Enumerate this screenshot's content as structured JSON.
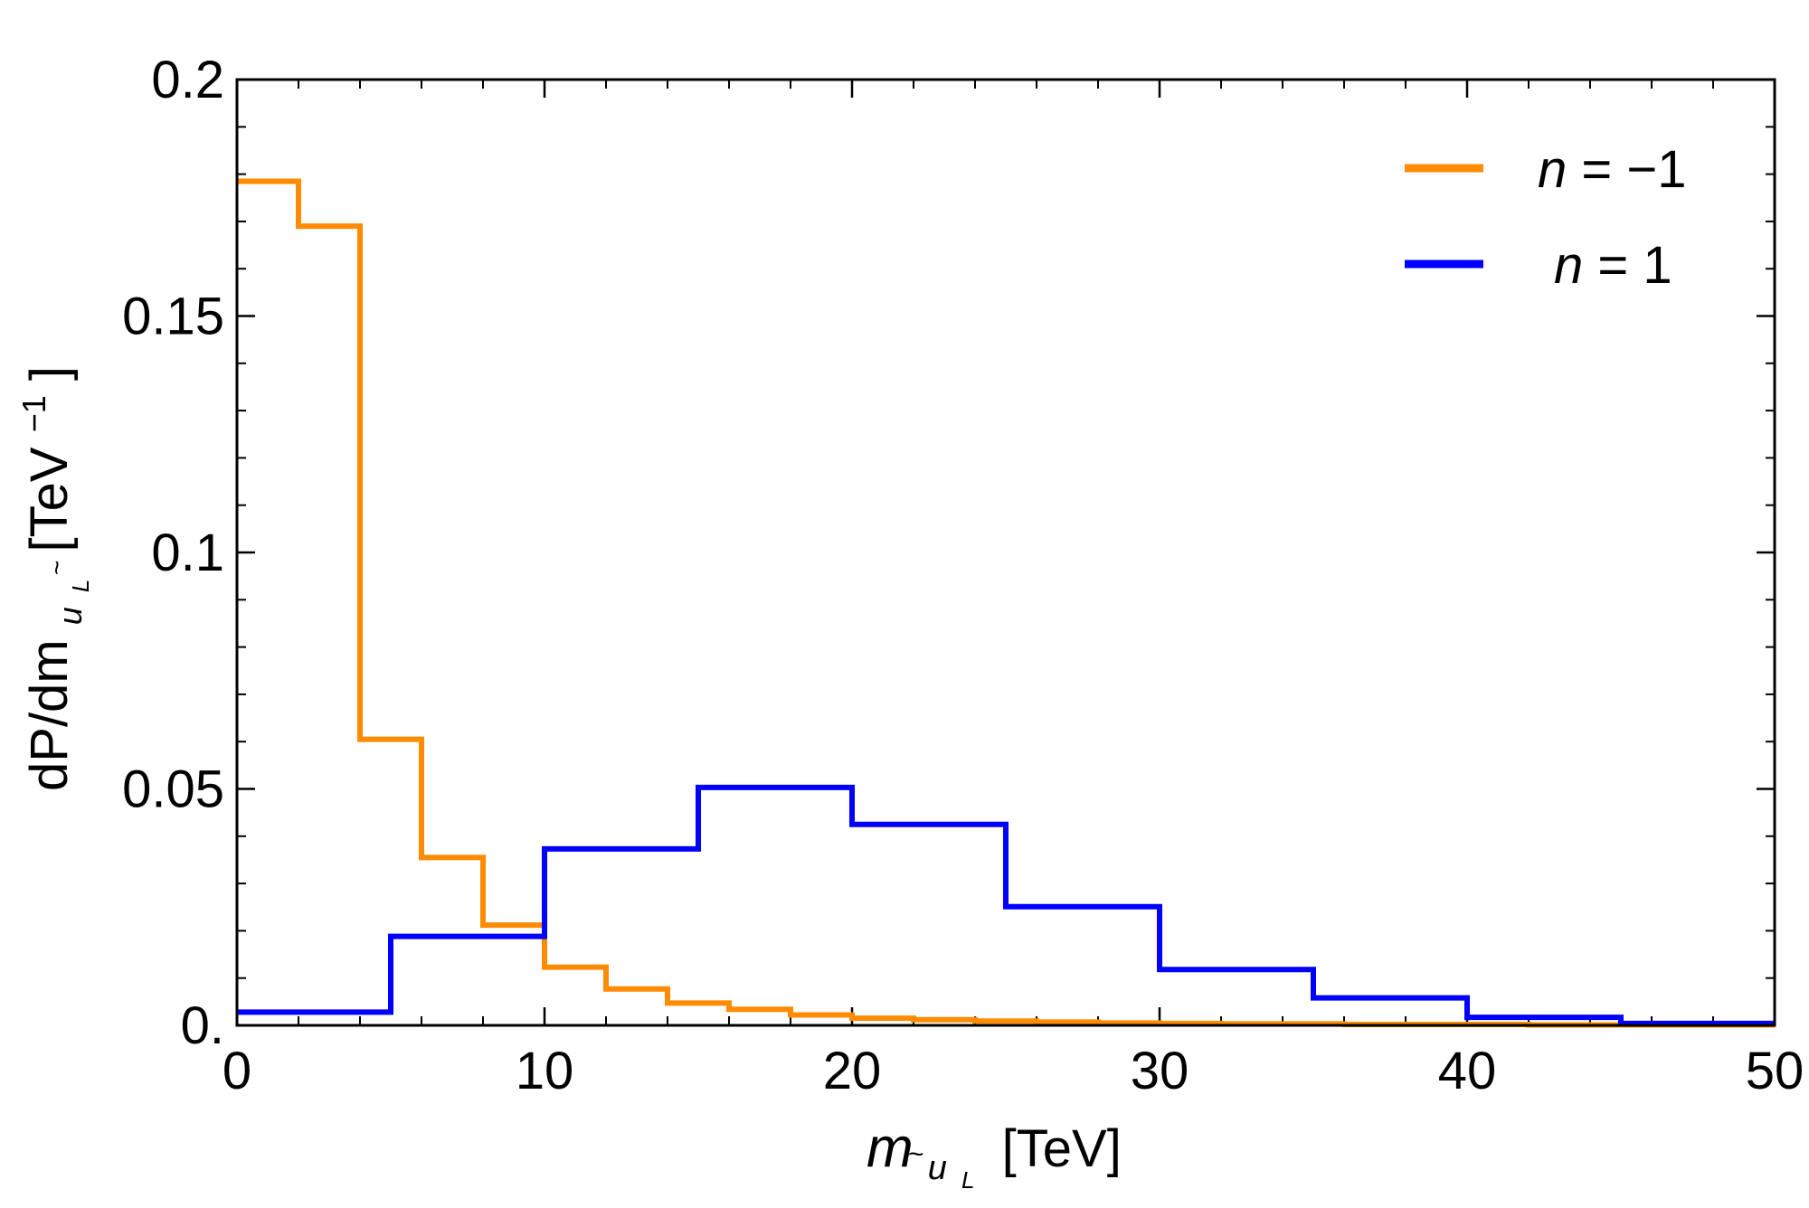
{
  "chart_data": {
    "type": "step-histogram",
    "title": "",
    "xlabel": {
      "main": "m",
      "sub_tilde": "~",
      "sub_u": "u",
      "sub_L": "L",
      "unit": "[TeV]"
    },
    "ylabel": {
      "main": "dP/dm",
      "sub_tilde": "~",
      "sub_u": "u",
      "sub_L": "L",
      "unit_open": "[TeV",
      "unit_exp": "−1",
      "unit_close": "]"
    },
    "xlim": [
      0,
      50
    ],
    "ylim": [
      0,
      0.2
    ],
    "x_ticks": [
      {
        "value": 0,
        "label": "0"
      },
      {
        "value": 10,
        "label": "10"
      },
      {
        "value": 20,
        "label": "20"
      },
      {
        "value": 30,
        "label": "30"
      },
      {
        "value": 40,
        "label": "40"
      },
      {
        "value": 50,
        "label": "50"
      }
    ],
    "y_ticks": [
      {
        "value": 0,
        "label": "0."
      },
      {
        "value": 0.05,
        "label": "0.05"
      },
      {
        "value": 0.1,
        "label": "0.1"
      },
      {
        "value": 0.15,
        "label": "0.15"
      },
      {
        "value": 0.2,
        "label": "0.2"
      }
    ],
    "x_minor_step": 2,
    "y_minor_step": 0.01,
    "grid": false,
    "legend_position": "top-right",
    "series": [
      {
        "name": "n = −1",
        "legend_var": "n",
        "legend_rest": " = −1",
        "color": "#ff8c00",
        "bin_edges": [
          0,
          2,
          4,
          6,
          8,
          10,
          12,
          14,
          16,
          18,
          20,
          22,
          24,
          26,
          28,
          30,
          32,
          34,
          36,
          38,
          40,
          42,
          44,
          46,
          48,
          50
        ],
        "values": [
          0.1785,
          0.169,
          0.0605,
          0.0355,
          0.0212,
          0.0123,
          0.0077,
          0.0047,
          0.0034,
          0.0022,
          0.0015,
          0.0012,
          0.0009,
          0.0007,
          0.0005,
          0.0004,
          0.0003,
          0.0003,
          0.0002,
          0.0002,
          0.0002,
          0.0001,
          0.0001,
          0.0001,
          0.0001
        ]
      },
      {
        "name": "n = 1",
        "legend_var": "n",
        "legend_rest": " = 1",
        "color": "#0000ff",
        "bin_edges": [
          0,
          5,
          10,
          15,
          20,
          25,
          30,
          35,
          40,
          45,
          50
        ],
        "values": [
          0.0028,
          0.0188,
          0.0373,
          0.0503,
          0.0425,
          0.0251,
          0.0118,
          0.0058,
          0.0017,
          0.0004
        ]
      }
    ]
  }
}
